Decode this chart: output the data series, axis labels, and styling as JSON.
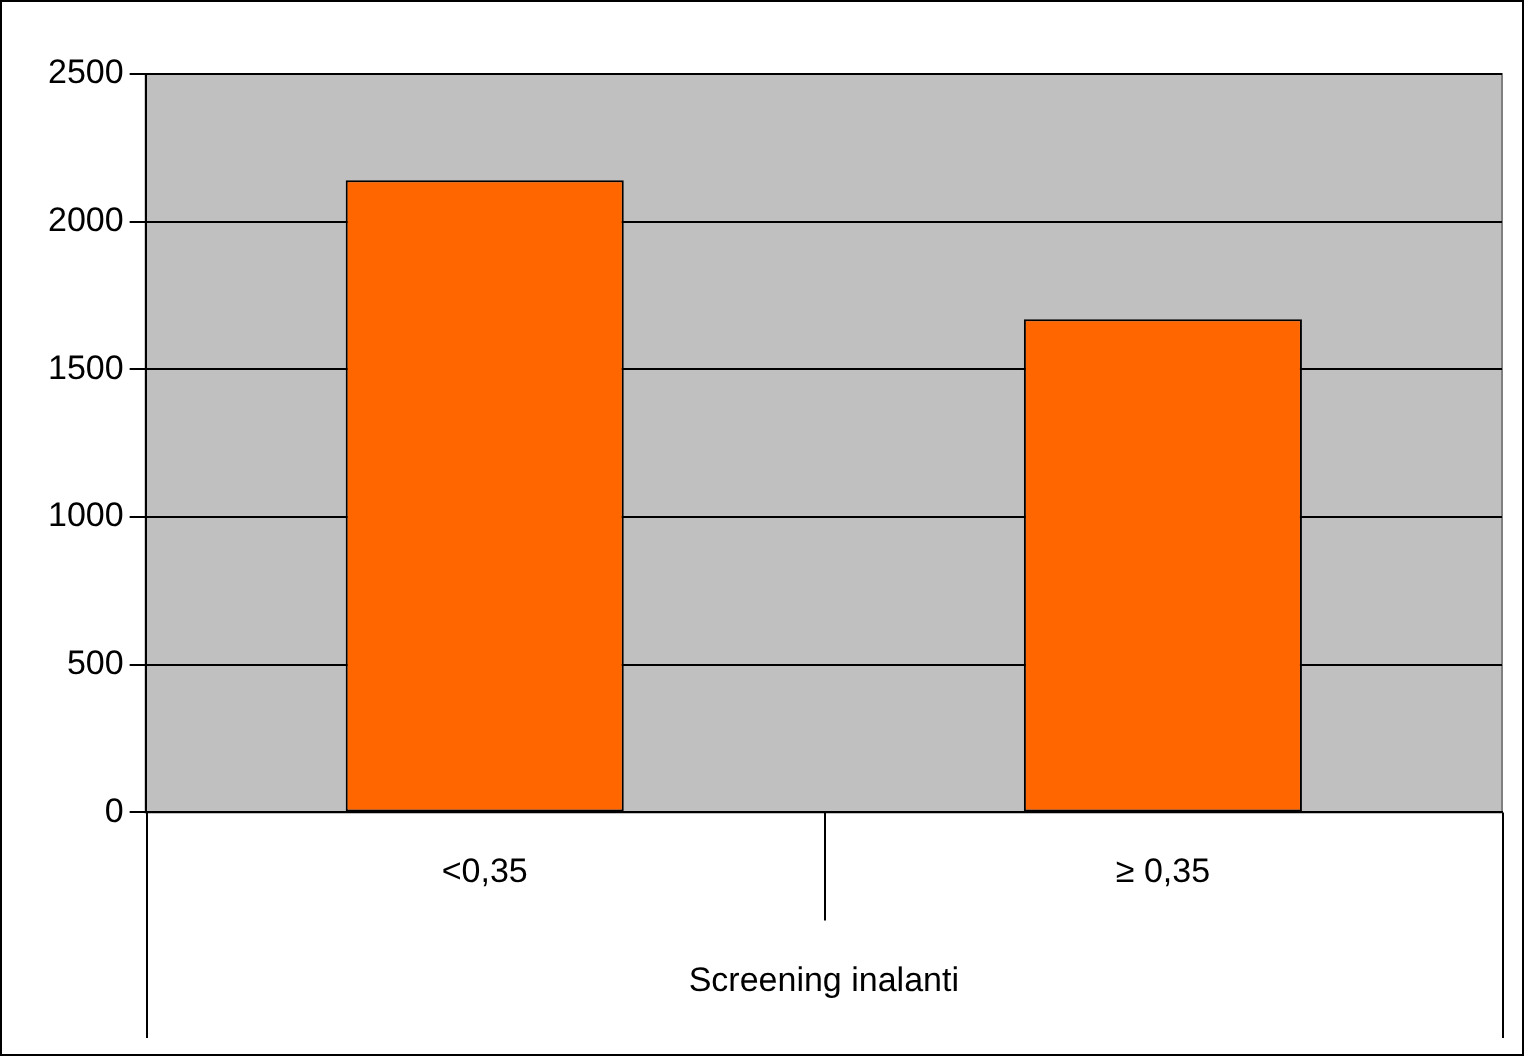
{
  "chart_data": {
    "type": "bar",
    "xlabel": "Screening inalanti",
    "categories": [
      "<0,35",
      "≥ 0,35"
    ],
    "values": [
      2140,
      1670
    ],
    "color": "#ff6600",
    "ylim": [
      0,
      2500
    ],
    "yticks": [
      0,
      500,
      1000,
      1500,
      2000,
      2500
    ],
    "grid": "y",
    "legend": false
  }
}
